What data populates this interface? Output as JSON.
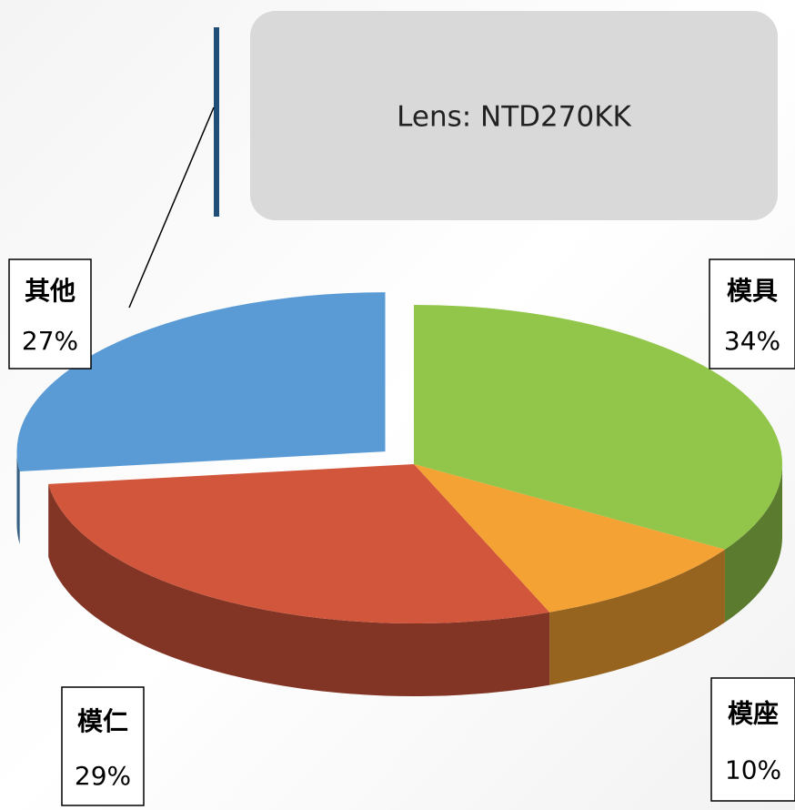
{
  "chart_data": {
    "type": "pie",
    "title": "Lens: NTD270KK",
    "categories": [
      "模具",
      "模座",
      "模仁",
      "其他"
    ],
    "values": [
      34,
      10,
      29,
      27
    ],
    "value_labels": [
      "34%",
      "10%",
      "29%",
      "27%"
    ],
    "colors": [
      "#92c64a",
      "#f4a234",
      "#d2563b",
      "#5b9bd5"
    ],
    "exploded": [
      false,
      false,
      false,
      true
    ]
  }
}
